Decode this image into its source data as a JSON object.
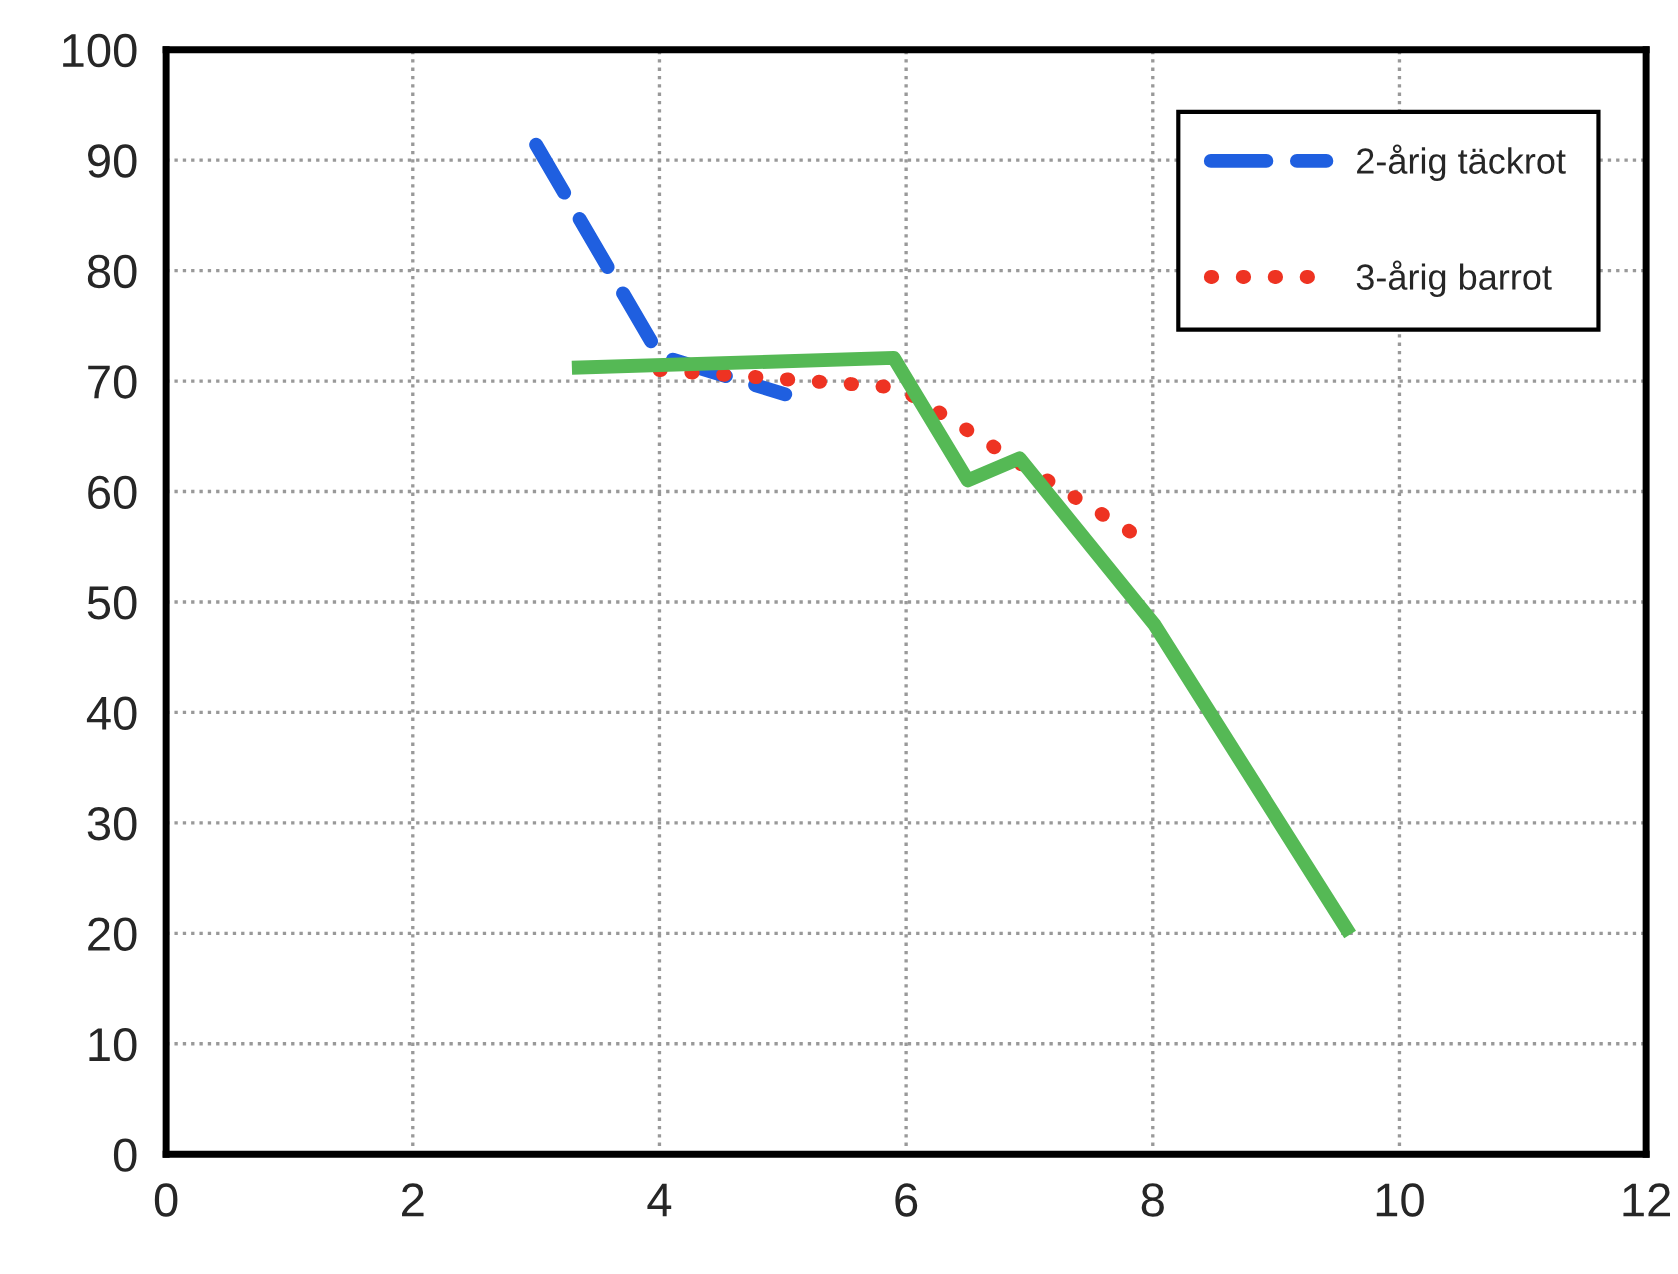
{
  "chart_data": {
    "type": "line",
    "xlim": [
      0,
      12
    ],
    "xticks": [
      0,
      2,
      4,
      6,
      8,
      10,
      12
    ],
    "ylim": [
      0,
      100
    ],
    "yticks": [
      0,
      10,
      20,
      30,
      40,
      50,
      60,
      70,
      80,
      90,
      100
    ],
    "grid": true,
    "legend": "top right",
    "series": [
      {
        "name": "2-årig täckrot",
        "color": "#1f5fe0",
        "line_style": "dashed",
        "x": [
          3.0,
          4.0,
          5.02
        ],
        "values": [
          91.4,
          72.3,
          68.8
        ]
      },
      {
        "name": "3-årig barrot",
        "color": "#ee3322",
        "line_style": "dotted",
        "x": [
          4.0,
          5.95,
          7.0,
          7.87
        ],
        "values": [
          71,
          69.4,
          62,
          56
        ]
      },
      {
        "color": "#55b955",
        "line_style": "solid",
        "x": [
          3.29,
          5.9,
          6.5,
          6.92,
          8.01,
          9.6
        ],
        "values": [
          71.2,
          72.1,
          61,
          63,
          48,
          19.9
        ]
      }
    ]
  }
}
